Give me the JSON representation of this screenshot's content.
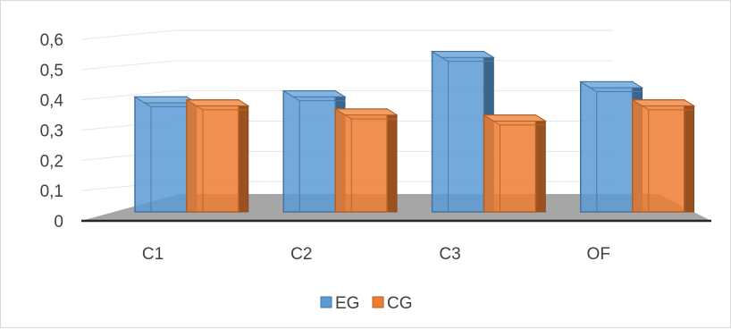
{
  "chart_data": {
    "type": "bar",
    "title": "",
    "xlabel": "",
    "ylabel": "",
    "ylim": [
      0,
      0.6
    ],
    "yticks": [
      "0",
      "0,1",
      "0,2",
      "0,3",
      "0,4",
      "0,5",
      "0,6"
    ],
    "categories": [
      "C1",
      "C2",
      "C3",
      "OF"
    ],
    "series": [
      {
        "name": "EG",
        "values": [
          0.38,
          0.4,
          0.53,
          0.43
        ],
        "color": "#5b9bd5"
      },
      {
        "name": "CG",
        "values": [
          0.37,
          0.34,
          0.32,
          0.37
        ],
        "color": "#ed7d31"
      }
    ],
    "grid": true,
    "legend": "bottom"
  }
}
